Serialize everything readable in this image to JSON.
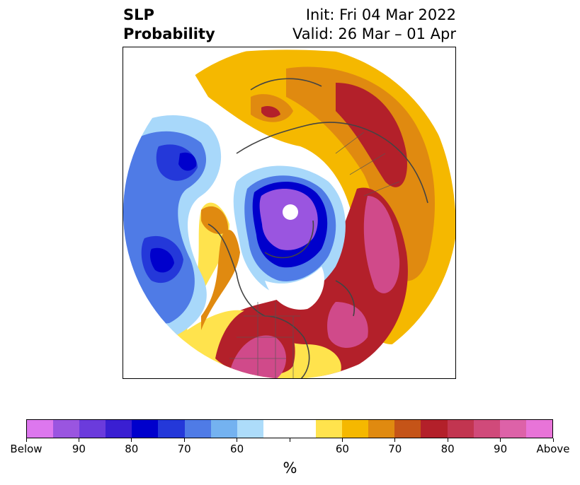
{
  "title": {
    "left_line1": "SLP",
    "left_line2": "Probability",
    "right_line1": "Init: Fri 04 Mar 2022",
    "right_line2": "Valid: 26 Mar – 01 Apr"
  },
  "map": {
    "projection": "north-polar-stereographic",
    "features": [
      "coastlines",
      "country-borders",
      "state-province-borders"
    ],
    "colors": {
      "below_90": "#5b2bd6",
      "below_80": "#0000cc",
      "below_70": "#2438d9",
      "below_60": "#4f7be6",
      "below_50": "#a8d8fa",
      "above_50": "#ffe34d",
      "above_60": "#f5b800",
      "above_70": "#e08a10",
      "above_80": "#b3202a",
      "above_90": "#d04a8a"
    }
  },
  "colorbar": {
    "segments": [
      "#dd77ee",
      "#9a55e0",
      "#6b3bdc",
      "#3a1fd2",
      "#0000cc",
      "#2438d9",
      "#4f7be6",
      "#74b2f0",
      "#addcfa",
      "#ffffff",
      "#ffffff",
      "#ffe34d",
      "#f5b800",
      "#e08a10",
      "#c55418",
      "#b3202a",
      "#c23550",
      "#d04a7a",
      "#dd62a8",
      "#e874d8"
    ],
    "tick_labels": [
      "Below",
      "90",
      "80",
      "70",
      "60",
      "",
      "60",
      "70",
      "80",
      "90",
      "Above"
    ],
    "unit": "%"
  }
}
